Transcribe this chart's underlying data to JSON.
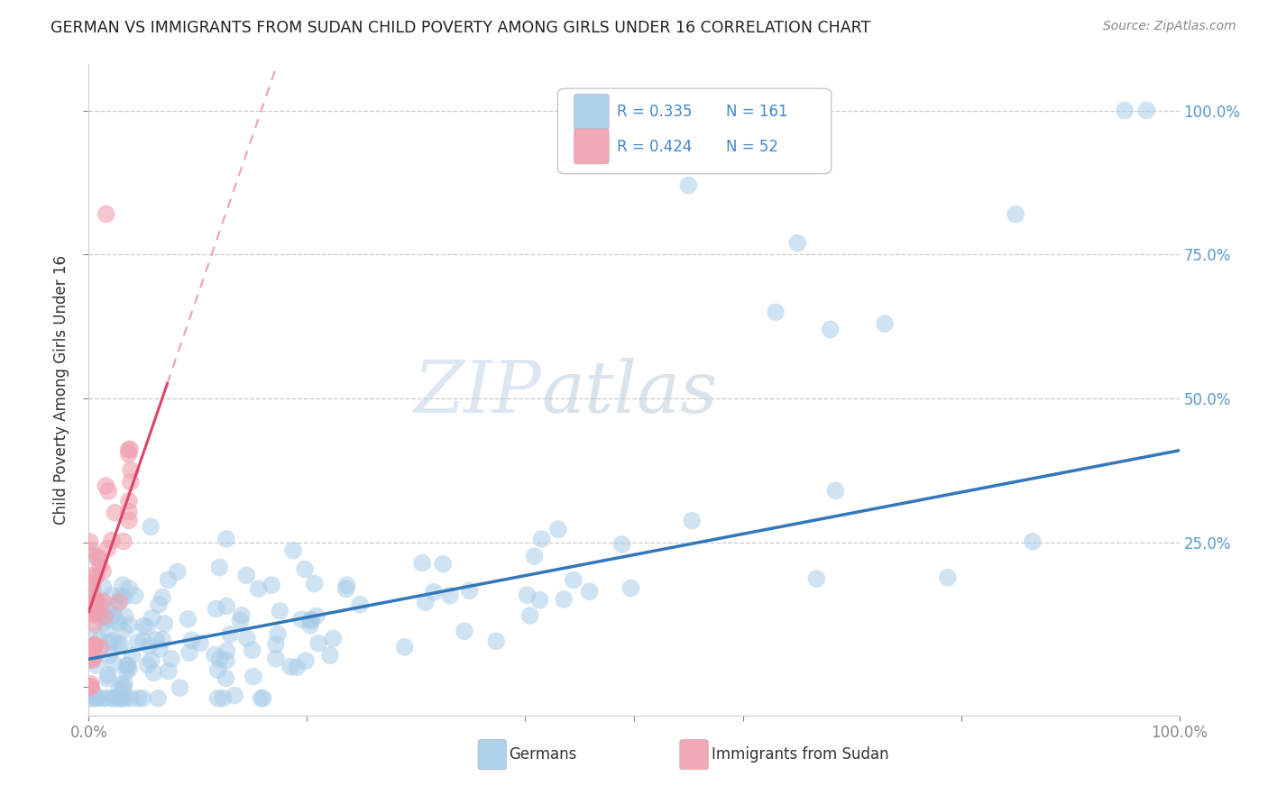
{
  "title": "GERMAN VS IMMIGRANTS FROM SUDAN CHILD POVERTY AMONG GIRLS UNDER 16 CORRELATION CHART",
  "source": "Source: ZipAtlas.com",
  "ylabel": "Child Poverty Among Girls Under 16",
  "german_color": "#A8CCE8",
  "sudan_color": "#F0A0B0",
  "german_line_color": "#3377BB",
  "sudan_line_color": "#DD4466",
  "watermark_zip": "ZIP",
  "watermark_atlas": "atlas",
  "legend_label_german": "Germans",
  "legend_label_sudan": "Immigrants from Sudan",
  "legend_R_german": "0.335",
  "legend_N_german": "161",
  "legend_R_sudan": "0.424",
  "legend_N_sudan": "52",
  "background_color": "#FFFFFF",
  "grid_color": "#CCCCCC",
  "right_tick_color": "#5599CC"
}
